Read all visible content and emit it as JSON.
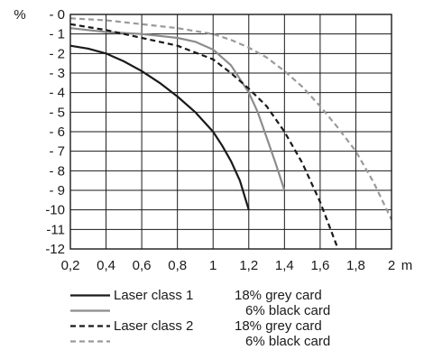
{
  "chart_data": {
    "type": "line",
    "xlabel": "m",
    "ylabel": "%",
    "xlim": [
      0.2,
      2.0
    ],
    "ylim": [
      -12,
      0
    ],
    "x_ticks": [
      "0,2",
      "0,4",
      "0,6",
      "0,8",
      "1",
      "1,2",
      "1,4",
      "1,6",
      "1,8",
      "2"
    ],
    "y_ticks": [
      "- 0",
      "- 1",
      "- 2",
      "- 3",
      "- 4",
      "- 5",
      "- 6",
      "- 7",
      "- 8",
      "- 9",
      "-10",
      "-11",
      "-12"
    ],
    "grid": true,
    "series": [
      {
        "name": "Laser class 1 18% grey card",
        "color": "#1a1a1a",
        "dash": "solid",
        "x": [
          0.2,
          0.3,
          0.4,
          0.5,
          0.6,
          0.7,
          0.8,
          0.9,
          1.0,
          1.05,
          1.1,
          1.15,
          1.2
        ],
        "y": [
          -1.6,
          -1.75,
          -2.0,
          -2.4,
          -2.9,
          -3.5,
          -4.2,
          -5.0,
          -6.0,
          -6.7,
          -7.5,
          -8.5,
          -10.0
        ]
      },
      {
        "name": "Laser class 1 6% black card",
        "color": "#8c8c8c",
        "dash": "solid",
        "x": [
          0.2,
          0.4,
          0.6,
          0.8,
          0.9,
          1.0,
          1.1,
          1.2,
          1.25,
          1.3,
          1.35,
          1.4
        ],
        "y": [
          -0.7,
          -0.9,
          -1.0,
          -1.2,
          -1.4,
          -1.8,
          -2.6,
          -4.0,
          -5.0,
          -6.3,
          -7.6,
          -9.0
        ]
      },
      {
        "name": "Laser class 2 18% grey card",
        "color": "#1a1a1a",
        "dash": "dashed",
        "x": [
          0.2,
          0.4,
          0.6,
          0.8,
          1.0,
          1.1,
          1.2,
          1.3,
          1.4,
          1.5,
          1.6,
          1.7
        ],
        "y": [
          -0.5,
          -0.8,
          -1.2,
          -1.6,
          -2.3,
          -3.0,
          -3.8,
          -4.7,
          -6.0,
          -7.6,
          -9.6,
          -12.0
        ]
      },
      {
        "name": "Laser class 2 6% black card",
        "color": "#9a9a9a",
        "dash": "dashed",
        "x": [
          0.2,
          0.4,
          0.6,
          0.8,
          1.0,
          1.1,
          1.2,
          1.3,
          1.4,
          1.5,
          1.6,
          1.7,
          1.8,
          1.9,
          2.0
        ],
        "y": [
          -0.2,
          -0.3,
          -0.5,
          -0.7,
          -1.0,
          -1.3,
          -1.7,
          -2.2,
          -2.9,
          -3.7,
          -4.7,
          -5.8,
          -7.0,
          -8.6,
          -10.5
        ]
      }
    ]
  },
  "legend": [
    {
      "class": "Laser class 1",
      "card": "18% grey card"
    },
    {
      "class": "",
      "card": "6% black card"
    },
    {
      "class": "Laser class 2",
      "card": "18% grey card"
    },
    {
      "class": "",
      "card": "6% black card"
    }
  ]
}
